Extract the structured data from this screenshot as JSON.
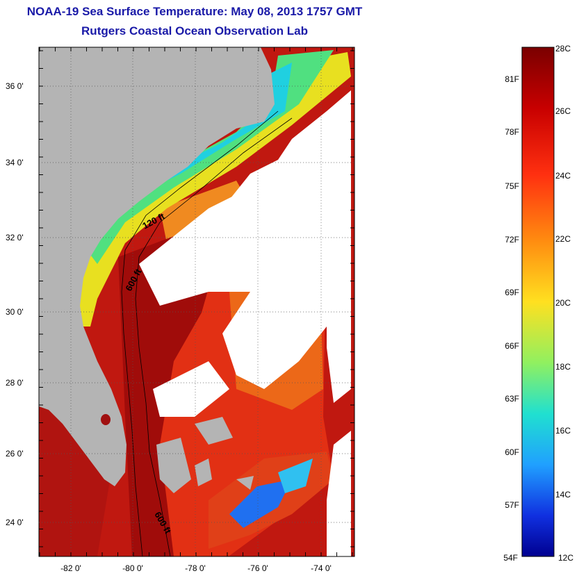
{
  "header": {
    "title": "NOAA-19 Sea Surface Temperature:  May 08, 2013 1757 GMT",
    "subtitle": "Rutgers Coastal Ocean Observation Lab"
  },
  "map": {
    "lat_labels": [
      "36 0'",
      "34 0'",
      "32 0'",
      "30 0'",
      "28 0'",
      "26 0'",
      "24 0'"
    ],
    "lon_labels": [
      "-82 0'",
      "-80 0'",
      "-78 0'",
      "-76 0'",
      "-74 0'"
    ],
    "contour_labels": [
      "120 ft",
      "600 ft",
      "600 ft"
    ],
    "colors": {
      "land": "#b4b4b4",
      "cloud": "#ffffff",
      "gulf_stream": "#a81010",
      "warm": "#e02010",
      "orange": "#f07818",
      "yellow": "#f0e020",
      "green": "#60e060",
      "cyan": "#20d8e0",
      "blue": "#2050f0"
    }
  },
  "colorbar": {
    "celsius_labels": [
      "28C",
      "26C",
      "24C",
      "22C",
      "20C",
      "18C",
      "16C",
      "14C",
      "12C"
    ],
    "fahrenheit_labels": [
      "81F",
      "78F",
      "75F",
      "72F",
      "69F",
      "66F",
      "63F",
      "60F",
      "57F",
      "54F"
    ],
    "range_c": [
      12,
      28
    ]
  }
}
